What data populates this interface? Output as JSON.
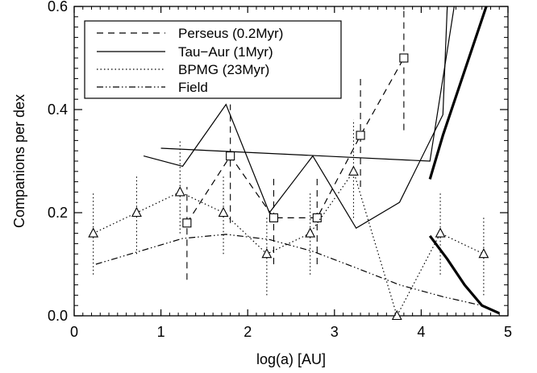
{
  "chart_data": {
    "type": "line",
    "xlabel": "log(a) [AU]",
    "ylabel": "Companions per dex",
    "xlim": [
      0,
      5
    ],
    "ylim": [
      0,
      0.6
    ],
    "xticks": [
      "0",
      "1",
      "2",
      "3",
      "4",
      "5"
    ],
    "yticks": [
      "0.0",
      "0.2",
      "0.4",
      "0.6"
    ],
    "grid": false,
    "legend_position": "top-left",
    "legend": [
      {
        "label": "Perseus (0.2Myr)",
        "style": "dashed"
      },
      {
        "label": "Tau−Aur (1Myr)",
        "style": "solid"
      },
      {
        "label": "BPMG (23Myr)",
        "style": "dotted"
      },
      {
        "label": "Field",
        "style": "dash-dot-dot"
      }
    ],
    "series": [
      {
        "name": "Perseus (0.2Myr)",
        "style": "dashed",
        "marker": "square",
        "points": [
          {
            "x": 1.3,
            "y": 0.18,
            "lo": 0.07,
            "hi": 0.25
          },
          {
            "x": 1.8,
            "y": 0.31,
            "lo": 0.18,
            "hi": 0.41
          },
          {
            "x": 2.3,
            "y": 0.19,
            "lo": 0.1,
            "hi": 0.27
          },
          {
            "x": 2.8,
            "y": 0.19,
            "lo": 0.1,
            "hi": 0.27
          },
          {
            "x": 3.3,
            "y": 0.35,
            "lo": 0.25,
            "hi": 0.46
          },
          {
            "x": 3.8,
            "y": 0.5,
            "lo": 0.36,
            "hi": 0.63
          }
        ]
      },
      {
        "name": "Tau−Aur (1Myr)",
        "style": "solid",
        "points": [
          {
            "x": 0.8,
            "y": 0.31
          },
          {
            "x": 1.25,
            "y": 0.29
          },
          {
            "x": 1.75,
            "y": 0.41
          },
          {
            "x": 2.25,
            "y": 0.2
          },
          {
            "x": 2.75,
            "y": 0.31
          },
          {
            "x": 3.25,
            "y": 0.17
          },
          {
            "x": 3.75,
            "y": 0.22
          },
          {
            "x": 4.25,
            "y": 0.39
          },
          {
            "x": 4.3,
            "y": 0.6
          }
        ]
      },
      {
        "name": "Tau−Aur fit (no legend)",
        "style": "solid",
        "points": [
          {
            "x": 1.0,
            "y": 0.325
          },
          {
            "x": 4.1,
            "y": 0.3
          },
          {
            "x": 4.38,
            "y": 0.6
          }
        ]
      },
      {
        "name": "BPMG (23Myr)",
        "style": "dotted",
        "marker": "triangle",
        "points": [
          {
            "x": 0.22,
            "y": 0.16,
            "lo": 0.08,
            "hi": 0.24
          },
          {
            "x": 0.72,
            "y": 0.2,
            "lo": 0.12,
            "hi": 0.27
          },
          {
            "x": 1.22,
            "y": 0.24,
            "lo": 0.16,
            "hi": 0.34
          },
          {
            "x": 1.72,
            "y": 0.2,
            "lo": 0.12,
            "hi": 0.27
          },
          {
            "x": 2.22,
            "y": 0.12,
            "lo": 0.04,
            "hi": 0.19
          },
          {
            "x": 2.72,
            "y": 0.16,
            "lo": 0.08,
            "hi": 0.24
          },
          {
            "x": 3.22,
            "y": 0.28,
            "lo": 0.19,
            "hi": 0.38
          },
          {
            "x": 3.72,
            "y": 0.0,
            "lo": 0.0,
            "hi": 0.0
          },
          {
            "x": 4.22,
            "y": 0.16,
            "lo": 0.08,
            "hi": 0.24
          },
          {
            "x": 4.72,
            "y": 0.12,
            "lo": 0.04,
            "hi": 0.19
          }
        ]
      },
      {
        "name": "Field",
        "style": "dash-dot-dot",
        "points": [
          {
            "x": 0.25,
            "y": 0.1
          },
          {
            "x": 0.75,
            "y": 0.125
          },
          {
            "x": 1.25,
            "y": 0.15
          },
          {
            "x": 1.75,
            "y": 0.158
          },
          {
            "x": 2.25,
            "y": 0.148
          },
          {
            "x": 2.75,
            "y": 0.125
          },
          {
            "x": 3.25,
            "y": 0.093
          },
          {
            "x": 3.75,
            "y": 0.06
          },
          {
            "x": 4.25,
            "y": 0.037
          },
          {
            "x": 4.75,
            "y": 0.018
          }
        ]
      },
      {
        "name": "Thick curve upper (no legend)",
        "style": "thick-solid",
        "points": [
          {
            "x": 4.1,
            "y": 0.265
          },
          {
            "x": 4.25,
            "y": 0.35
          },
          {
            "x": 4.45,
            "y": 0.45
          },
          {
            "x": 4.75,
            "y": 0.6
          }
        ]
      },
      {
        "name": "Thick curve lower (no legend)",
        "style": "thick-solid",
        "points": [
          {
            "x": 4.1,
            "y": 0.155
          },
          {
            "x": 4.3,
            "y": 0.11
          },
          {
            "x": 4.5,
            "y": 0.06
          },
          {
            "x": 4.7,
            "y": 0.02
          },
          {
            "x": 4.9,
            "y": 0.005
          }
        ]
      }
    ]
  }
}
